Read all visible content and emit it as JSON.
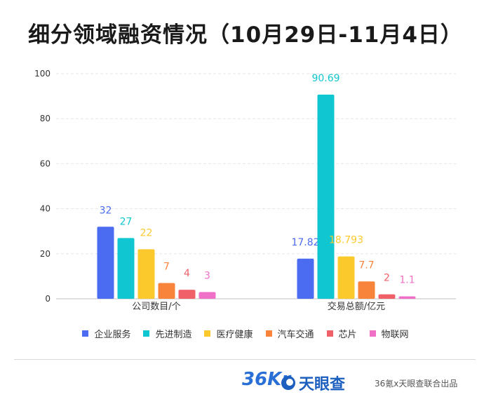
{
  "title": "细分领域融资情况（10月29日-11月4日）",
  "colors": {
    "企业服务": "#4b6bf0",
    "先进制造": "#10c6d1",
    "医疗健康": "#fcc92d",
    "汽车交通": "#f8843c",
    "芯片": "#f06068",
    "物联网": "#f070c8"
  },
  "chart_data": {
    "type": "bar",
    "categories": [
      "公司数目/个",
      "交易总额/亿元"
    ],
    "series": [
      {
        "name": "企业服务",
        "values": [
          32,
          17.82
        ],
        "labels": [
          "32",
          "17.82"
        ]
      },
      {
        "name": "先进制造",
        "values": [
          27,
          90.69
        ],
        "labels": [
          "27",
          "90.69"
        ]
      },
      {
        "name": "医疗健康",
        "values": [
          22,
          18.793
        ],
        "labels": [
          "22",
          "18.793"
        ]
      },
      {
        "name": "汽车交通",
        "values": [
          7,
          7.7
        ],
        "labels": [
          "7",
          "7.7"
        ]
      },
      {
        "name": "芯片",
        "values": [
          4,
          2
        ],
        "labels": [
          "4",
          "2"
        ]
      },
      {
        "name": "物联网",
        "values": [
          3,
          1.1
        ],
        "labels": [
          "3",
          "1.1"
        ]
      }
    ],
    "yticks": [
      "0",
      "20",
      "40",
      "60",
      "80",
      "100"
    ],
    "ylim": [
      0,
      100
    ],
    "grid": true,
    "legend": "bottom"
  },
  "footer": {
    "logo_36kr": "36Kr",
    "logo_tianyancha": "天眼查",
    "credit": "36氪x天眼查联合出品"
  }
}
